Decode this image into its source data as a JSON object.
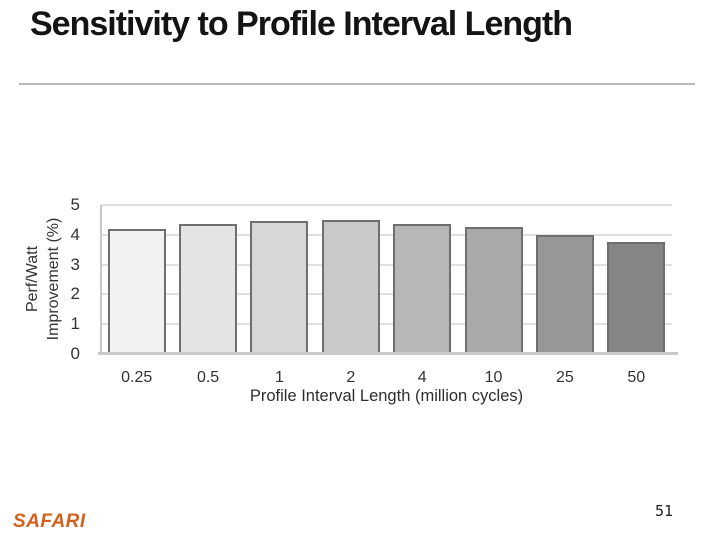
{
  "slide": {
    "title": "Sensitivity to Profile Interval Length"
  },
  "chart_data": {
    "type": "bar",
    "title": "",
    "categories": [
      "0.25",
      "0.5",
      "1",
      "2",
      "4",
      "10",
      "25",
      "50"
    ],
    "values": [
      4.2,
      4.35,
      4.45,
      4.5,
      4.35,
      4.25,
      4.0,
      3.75
    ],
    "xlabel": "Profile Interval Length (million cycles)",
    "ylabel": "Perf/Watt Improvement (%)",
    "ylabel_lines": [
      "Perf/Watt",
      "Improvement (%)"
    ],
    "y_ticks": [
      "0",
      "1",
      "2",
      "3",
      "4",
      "5"
    ],
    "ylim": [
      0,
      5
    ],
    "grid": "horizontal gridlines at each integer",
    "legend": "none",
    "bar_colors": [
      "#f2f2f2",
      "#e4e4e4",
      "#d7d7d7",
      "#c9c9c9",
      "#b7b7b7",
      "#a9a9a9",
      "#979797",
      "#858585"
    ],
    "bar_border_color": "#6f6f6f"
  },
  "footer": {
    "logo": "SAFARI",
    "logo_color": "#d2611d",
    "page_number": "51"
  }
}
